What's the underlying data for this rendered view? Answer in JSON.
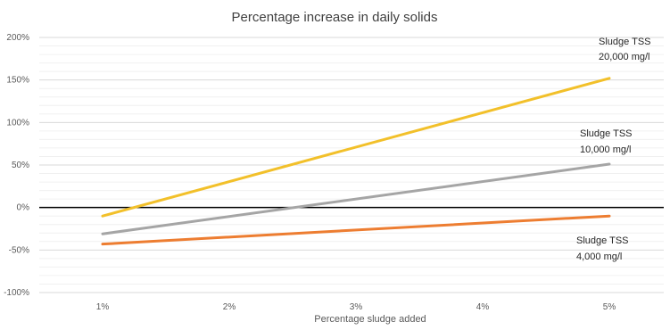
{
  "chart_data": {
    "type": "line",
    "title": "Percentage increase in daily solids",
    "xlabel": "Percentage sludge added",
    "ylabel": "",
    "x": [
      1,
      5
    ],
    "x_tick_labels": [
      "1%",
      "2%",
      "3%",
      "4%",
      "5%"
    ],
    "x_ticks": [
      1,
      2,
      3,
      4,
      5
    ],
    "ylim": [
      -100,
      200
    ],
    "y_ticks": [
      -100,
      -50,
      0,
      50,
      100,
      150,
      200
    ],
    "y_tick_labels": [
      "-100%",
      "-50%",
      "0%",
      "50%",
      "100%",
      "150%",
      "200%"
    ],
    "grid": true,
    "series": [
      {
        "label_line1": "Sludge TSS",
        "label_line2": "20,000 mg/l",
        "color": "#F2C02A",
        "values": [
          -10,
          152
        ]
      },
      {
        "label_line1": "Sludge TSS",
        "label_line2": "10,000 mg/l",
        "color": "#A5A5A5",
        "values": [
          -31,
          51
        ]
      },
      {
        "label_line1": "Sludge TSS",
        "label_line2": "4,000 mg/l",
        "color": "#ED7D31",
        "values": [
          -43,
          -10
        ]
      }
    ],
    "zero_line_color": "#000000"
  }
}
